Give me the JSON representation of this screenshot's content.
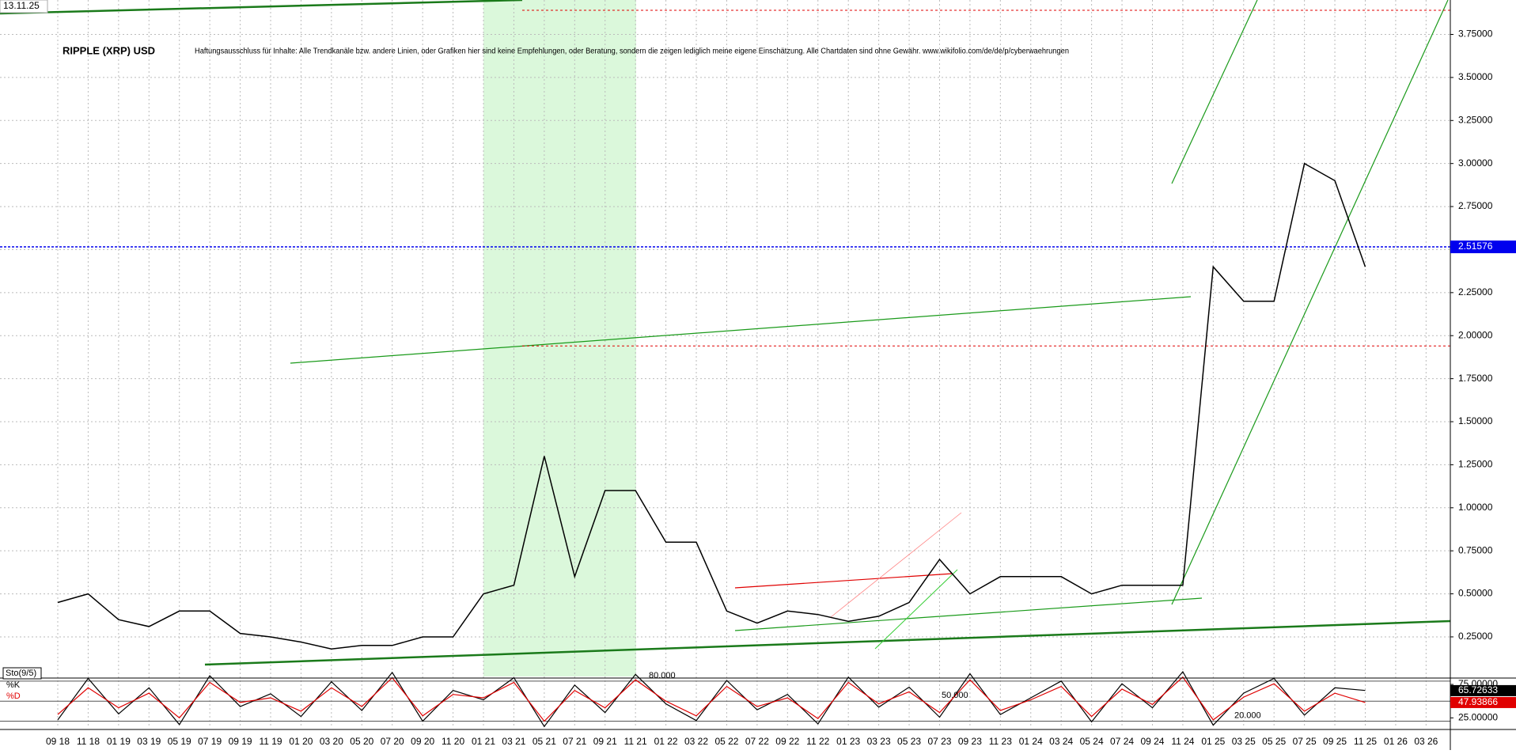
{
  "chart_data": [
    {
      "type": "line",
      "title": "RIPPLE (XRP) USD",
      "subtitle": "Haftungsausschluss für Inhalte: Alle Trendkanäle bzw. andere Linien, oder Grafiken hier sind keine Empfehlungen, oder Beratung, sondern die zeigen lediglich meine eigene Einschätzung. Alle Chartdaten sind ohne Gewähr. www.wikifolio.com/de/de/p/cyberwaehrungen",
      "date_label": "13.11.25",
      "categories": [
        "09 18",
        "11 18",
        "01 19",
        "03 19",
        "05 19",
        "07 19",
        "09 19",
        "11 19",
        "01 20",
        "03 20",
        "05 20",
        "07 20",
        "09 20",
        "11 20",
        "01 21",
        "03 21",
        "05 21",
        "07 21",
        "09 21",
        "11 21",
        "01 22",
        "03 22",
        "05 22",
        "07 22",
        "09 22",
        "11 22",
        "01 23",
        "03 23",
        "05 23",
        "07 23",
        "09 23",
        "11 23",
        "01 24",
        "03 24",
        "05 24",
        "07 24",
        "09 24",
        "11 24",
        "01 25",
        "03 25",
        "05 25",
        "07 25",
        "09 25",
        "11 25",
        "01 26",
        "03 26"
      ],
      "values": [
        0.45,
        0.5,
        0.35,
        0.31,
        0.4,
        0.4,
        0.27,
        0.25,
        0.22,
        0.18,
        0.2,
        0.2,
        0.25,
        0.25,
        0.5,
        0.55,
        1.3,
        0.6,
        1.1,
        1.1,
        0.8,
        0.8,
        0.4,
        0.33,
        0.4,
        0.38,
        0.34,
        0.37,
        0.45,
        0.7,
        0.5,
        0.6,
        0.6,
        0.6,
        0.5,
        0.55,
        0.55,
        0.55,
        2.4,
        2.2,
        2.2,
        3.0,
        2.9,
        2.4,
        null,
        null
      ],
      "color": "#000000",
      "current_price": {
        "value": 2.51576,
        "label": "2.51576"
      },
      "reference_lines": [
        1.94,
        3.89
      ],
      "ylim": [
        0.02,
        3.95
      ],
      "yticks": [
        {
          "value": 0.25,
          "label": "0.25000"
        },
        {
          "value": 0.5,
          "label": "0.50000"
        },
        {
          "value": 0.75,
          "label": "0.75000"
        },
        {
          "value": 1,
          "label": "1.00000"
        },
        {
          "value": 1.25,
          "label": "1.25000"
        },
        {
          "value": 1.5,
          "label": "1.50000"
        },
        {
          "value": 1.75,
          "label": "1.75000"
        },
        {
          "value": 2,
          "label": "2.00000"
        },
        {
          "value": 2.25,
          "label": "2.25000"
        },
        {
          "value": 2.5,
          "label": "2.50000"
        },
        {
          "value": 2.75,
          "label": "2.75000"
        },
        {
          "value": 3,
          "label": "3.00000"
        },
        {
          "value": 3.25,
          "label": "3.25000"
        },
        {
          "value": 3.5,
          "label": "3.50000"
        },
        {
          "value": 3.75,
          "label": "3.75000"
        }
      ],
      "grid": true
    },
    {
      "type": "line",
      "title": "Sto(9/5)",
      "series": [
        {
          "name": "%K",
          "color": "#000000",
          "values": [
            22,
            84,
            31,
            70,
            15,
            88,
            42,
            61,
            27,
            79,
            36,
            93,
            20,
            66,
            52,
            85,
            12,
            74,
            33,
            90,
            46,
            21,
            81,
            37,
            60,
            16,
            86,
            41,
            71,
            26,
            91,
            30,
            55,
            80,
            19,
            76,
            40,
            94,
            14,
            62,
            84,
            29,
            70,
            66,
            null,
            null
          ]
        },
        {
          "name": "%D",
          "color": "#e00000",
          "values": [
            30,
            70,
            40,
            62,
            25,
            78,
            48,
            55,
            35,
            70,
            42,
            85,
            28,
            60,
            55,
            78,
            20,
            66,
            40,
            82,
            50,
            28,
            72,
            42,
            55,
            24,
            78,
            46,
            64,
            33,
            82,
            36,
            52,
            72,
            27,
            68,
            45,
            86,
            22,
            56,
            76,
            35,
            62,
            48,
            null,
            null
          ]
        }
      ],
      "readouts": [
        {
          "value": 65.72633,
          "label": "65.72633"
        },
        {
          "value": 47.93866,
          "label": "47.93866"
        }
      ],
      "levels": [
        {
          "value": 80,
          "label": "80.000"
        },
        {
          "value": 50,
          "label": "50.000"
        },
        {
          "value": 20,
          "label": "20.000"
        }
      ],
      "ylim": [
        10,
        81
      ],
      "yticks": [
        {
          "value": 25,
          "label": "25.00000"
        },
        {
          "value": 75,
          "label": "75.00000"
        }
      ]
    }
  ]
}
